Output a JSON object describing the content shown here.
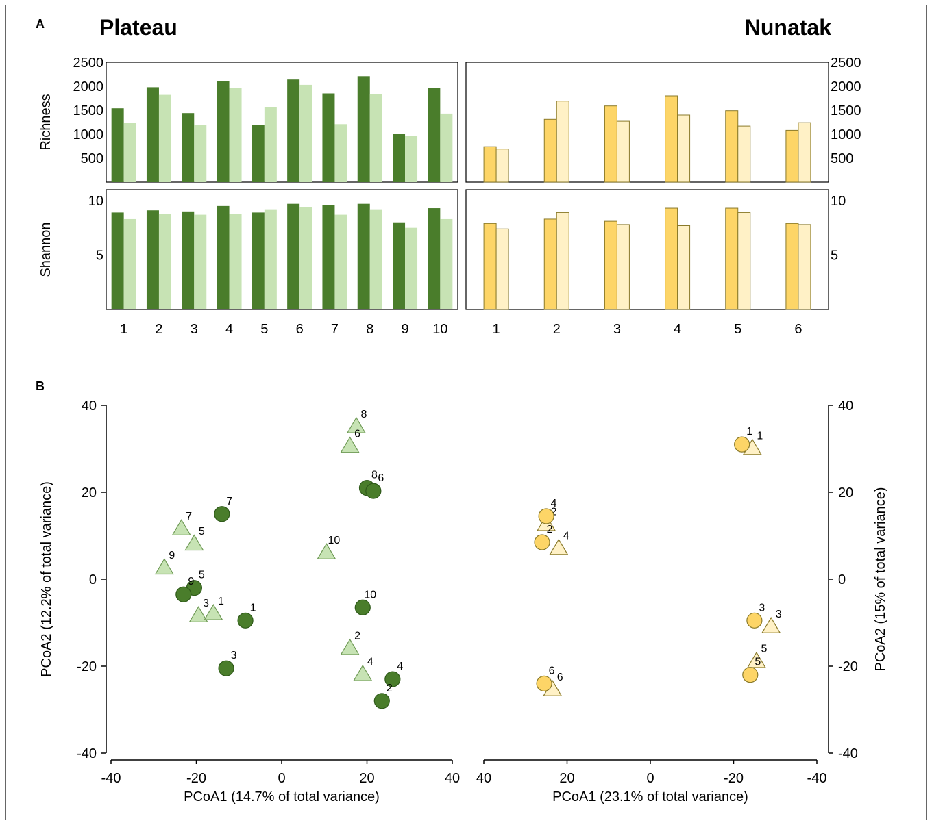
{
  "panels": {
    "a": "A",
    "b": "B"
  },
  "sites": {
    "plateau": "Plateau",
    "nunatak": "Nunatak"
  },
  "colors": {
    "plateau_dark": "#4a7d2b",
    "plateau_light": "#c7e3b4",
    "nunatak_dark": "#fdd567",
    "nunatak_light": "#fff1c6",
    "nunatak_edge": "#8a7a2a"
  },
  "chart_data": [
    {
      "type": "bar",
      "panel": "A",
      "site": "Plateau",
      "ylabel": "Richness",
      "ylim": [
        0,
        2500
      ],
      "yticks": [
        "500",
        "1000",
        "1500",
        "2000",
        "2500"
      ],
      "categories": [
        "1",
        "2",
        "3",
        "4",
        "5",
        "6",
        "7",
        "8",
        "9",
        "10"
      ],
      "series": [
        {
          "values": [
            1540,
            1980,
            1440,
            2100,
            1200,
            2140,
            1850,
            2210,
            1000,
            1960
          ]
        },
        {
          "values": [
            1230,
            1820,
            1200,
            1960,
            1560,
            2030,
            1210,
            1840,
            960,
            1430
          ]
        }
      ]
    },
    {
      "type": "bar",
      "panel": "A",
      "site": "Nunatak",
      "ylabel": "",
      "ylim": [
        0,
        2500
      ],
      "yticks": [
        "500",
        "1000",
        "1500",
        "2000",
        "2500"
      ],
      "categories": [
        "1",
        "2",
        "3",
        "4",
        "5",
        "6"
      ],
      "series": [
        {
          "values": [
            740,
            1310,
            1590,
            1800,
            1490,
            1080
          ]
        },
        {
          "values": [
            690,
            1690,
            1270,
            1400,
            1170,
            1240
          ]
        }
      ]
    },
    {
      "type": "bar",
      "panel": "A",
      "site": "Plateau",
      "ylabel": "Shannon",
      "ylim": [
        0,
        11
      ],
      "yticks": [
        "5",
        "10"
      ],
      "categories": [
        "1",
        "2",
        "3",
        "4",
        "5",
        "6",
        "7",
        "8",
        "9",
        "10"
      ],
      "series": [
        {
          "values": [
            8.9,
            9.1,
            9.0,
            9.5,
            8.9,
            9.7,
            9.6,
            9.7,
            8.0,
            9.3
          ]
        },
        {
          "values": [
            8.3,
            8.8,
            8.7,
            8.8,
            9.2,
            9.4,
            8.7,
            9.2,
            7.5,
            8.3
          ]
        }
      ]
    },
    {
      "type": "bar",
      "panel": "A",
      "site": "Nunatak",
      "ylabel": "",
      "ylim": [
        0,
        11
      ],
      "yticks": [
        "5",
        "10"
      ],
      "categories": [
        "1",
        "2",
        "3",
        "4",
        "5",
        "6"
      ],
      "series": [
        {
          "values": [
            7.9,
            8.3,
            8.1,
            9.3,
            9.3,
            7.9
          ]
        },
        {
          "values": [
            7.4,
            8.9,
            7.8,
            7.7,
            8.9,
            7.8
          ]
        }
      ]
    },
    {
      "type": "scatter",
      "panel": "B",
      "site": "Plateau",
      "xlabel": "PCoA1 (14.7% of total variance)",
      "ylabel": "PCoA2 (12.2% of total variance)",
      "xlim": [
        -40,
        40
      ],
      "ylim": [
        -40,
        40
      ],
      "xticks": [
        "-40",
        "-20",
        "0",
        "20",
        "40"
      ],
      "yticks": [
        "40",
        "20",
        "0",
        "-20",
        "-40"
      ],
      "series": [
        {
          "marker": "circle",
          "points": [
            {
              "label": "7",
              "x": -14,
              "y": 15
            },
            {
              "label": "5",
              "x": -20.5,
              "y": -2
            },
            {
              "label": "9",
              "x": -23,
              "y": -3.5
            },
            {
              "label": "1",
              "x": -8.5,
              "y": -9.5
            },
            {
              "label": "3",
              "x": -13,
              "y": -20.5
            },
            {
              "label": "8",
              "x": 20,
              "y": 21
            },
            {
              "label": "6",
              "x": 21.5,
              "y": 20.3
            },
            {
              "label": "10",
              "x": 19,
              "y": -6.5
            },
            {
              "label": "4",
              "x": 26,
              "y": -23
            },
            {
              "label": "2",
              "x": 23.5,
              "y": -28
            }
          ]
        },
        {
          "marker": "triangle",
          "points": [
            {
              "label": "8",
              "x": 17.5,
              "y": 35
            },
            {
              "label": "6",
              "x": 16,
              "y": 30.5
            },
            {
              "label": "7",
              "x": -23.5,
              "y": 11.5
            },
            {
              "label": "5",
              "x": -20.5,
              "y": 8
            },
            {
              "label": "9",
              "x": -27.5,
              "y": 2.5
            },
            {
              "label": "10",
              "x": 10.5,
              "y": 6
            },
            {
              "label": "3",
              "x": -19.5,
              "y": -8.5
            },
            {
              "label": "1",
              "x": -16,
              "y": -8
            },
            {
              "label": "2",
              "x": 16,
              "y": -16
            },
            {
              "label": "4",
              "x": 19,
              "y": -22
            }
          ]
        }
      ]
    },
    {
      "type": "scatter",
      "panel": "B",
      "site": "Nunatak",
      "xlabel": "PCoA1 (23.1% of total variance)",
      "ylabel": "PCoA2 (15% of total variance)",
      "xlim": [
        40,
        -40
      ],
      "ylim": [
        -40,
        40
      ],
      "xticks": [
        "40",
        "20",
        "0",
        "-20",
        "-40"
      ],
      "yticks": [
        "40",
        "20",
        "0",
        "-20",
        "-40"
      ],
      "series": [
        {
          "marker": "circle",
          "points": [
            {
              "label": "1",
              "x": -22,
              "y": 31
            },
            {
              "label": "4",
              "x": 25,
              "y": 14.5
            },
            {
              "label": "2",
              "x": 26,
              "y": 8.5
            },
            {
              "label": "3",
              "x": -25,
              "y": -9.5
            },
            {
              "label": "5",
              "x": -24,
              "y": -22
            },
            {
              "label": "6",
              "x": 25.5,
              "y": -24
            }
          ]
        },
        {
          "marker": "triangle",
          "points": [
            {
              "label": "1",
              "x": -24.5,
              "y": 30
            },
            {
              "label": "2",
              "x": 25,
              "y": 12.5
            },
            {
              "label": "4",
              "x": 22,
              "y": 7
            },
            {
              "label": "3",
              "x": -29,
              "y": -11
            },
            {
              "label": "5",
              "x": -25.5,
              "y": -19
            },
            {
              "label": "6",
              "x": 23.5,
              "y": -25.5
            }
          ]
        }
      ]
    }
  ]
}
